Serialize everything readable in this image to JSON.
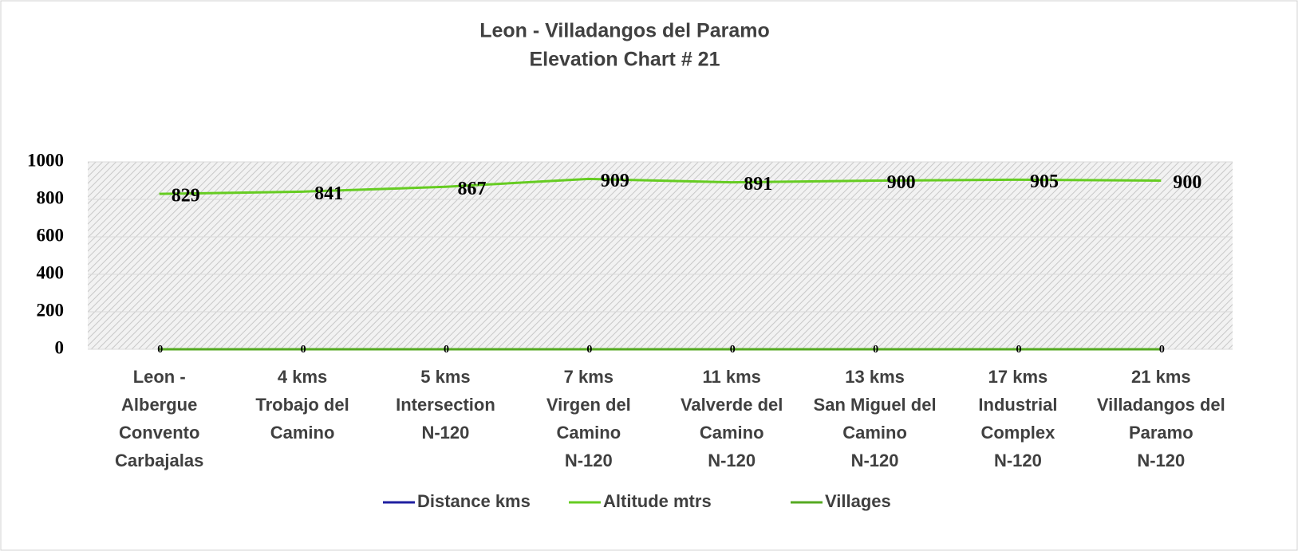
{
  "chart_data": {
    "type": "line",
    "title": [
      "Leon - Villadangos del Paramo",
      "Elevation Chart # 21"
    ],
    "categories": [
      [
        "Leon -",
        "Albergue",
        "Convento",
        "Carbajalas"
      ],
      [
        "4 kms",
        "Trobajo del",
        "Camino"
      ],
      [
        "5 kms",
        "Intersection",
        "N-120"
      ],
      [
        "7 kms",
        "Virgen del",
        "Camino",
        "N-120"
      ],
      [
        "11  kms",
        "Valverde del",
        "Camino",
        "N-120"
      ],
      [
        "13 kms",
        "San Miguel del",
        "Camino",
        "N-120"
      ],
      [
        "17 kms",
        "Industrial",
        "Complex",
        "N-120"
      ],
      [
        "21  kms",
        "Villadangos del",
        "Paramo",
        "N-120"
      ]
    ],
    "series": [
      {
        "name": "Distance kms",
        "color": "#1f1fa0",
        "values": [
          0,
          0,
          0,
          0,
          0,
          0,
          0,
          0
        ]
      },
      {
        "name": "Altitude mtrs",
        "color": "#66cc22",
        "values": [
          829,
          841,
          867,
          909,
          891,
          900,
          905,
          900
        ],
        "data_labels": true
      },
      {
        "name": "Villages",
        "color": "#55aa22",
        "values": [
          0,
          0,
          0,
          0,
          0,
          0,
          0,
          0
        ],
        "data_labels": true
      }
    ],
    "ylim": [
      0,
      1000
    ],
    "yticks": [
      0,
      200,
      400,
      600,
      800,
      1000
    ],
    "grid": true,
    "legend": "bottom"
  }
}
